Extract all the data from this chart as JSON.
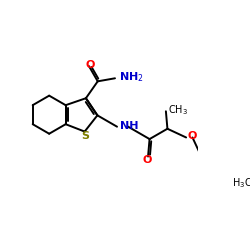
{
  "background_color": "#ffffff",
  "C": "#000000",
  "O": "#ff0000",
  "N": "#0000cc",
  "S": "#808000",
  "lw": 1.4,
  "fs": 8.0,
  "fs_small": 7.0
}
